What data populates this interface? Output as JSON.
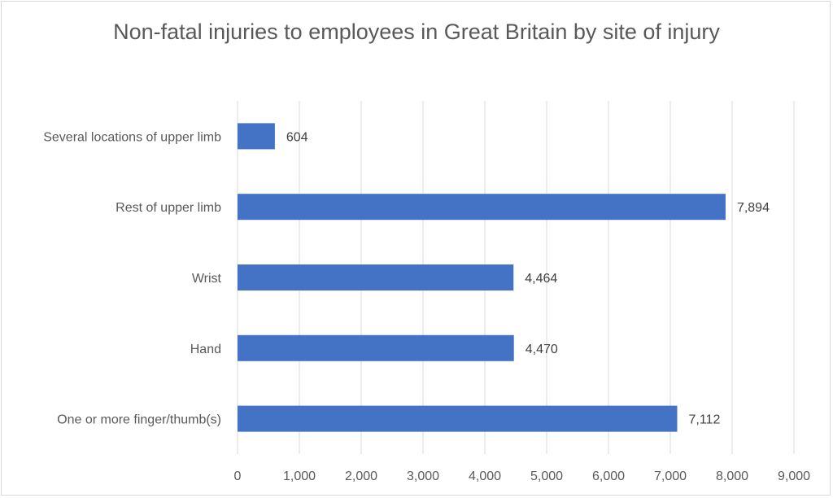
{
  "chart_data": {
    "type": "bar",
    "orientation": "horizontal",
    "title": "Non-fatal injuries to employees in Great Britain by site of injury",
    "categories": [
      "Several locations of upper limb",
      "Rest of upper limb",
      "Wrist",
      "Hand",
      "One or more finger/thumb(s)"
    ],
    "values": [
      604,
      7894,
      4464,
      4470,
      7112
    ],
    "data_labels": [
      "604",
      "7,894",
      "4,464",
      "4,470",
      "7,112"
    ],
    "xlim": [
      0,
      9000
    ],
    "x_ticks": [
      0,
      1000,
      2000,
      3000,
      4000,
      5000,
      6000,
      7000,
      8000,
      9000
    ],
    "x_tick_labels": [
      "0",
      "1,000",
      "2,000",
      "3,000",
      "4,000",
      "5,000",
      "6,000",
      "7,000",
      "8,000",
      "9,000"
    ],
    "grid": "vertical",
    "legend": "none",
    "bar_color": "#4472C4",
    "grid_color": "#d9d9d9"
  }
}
